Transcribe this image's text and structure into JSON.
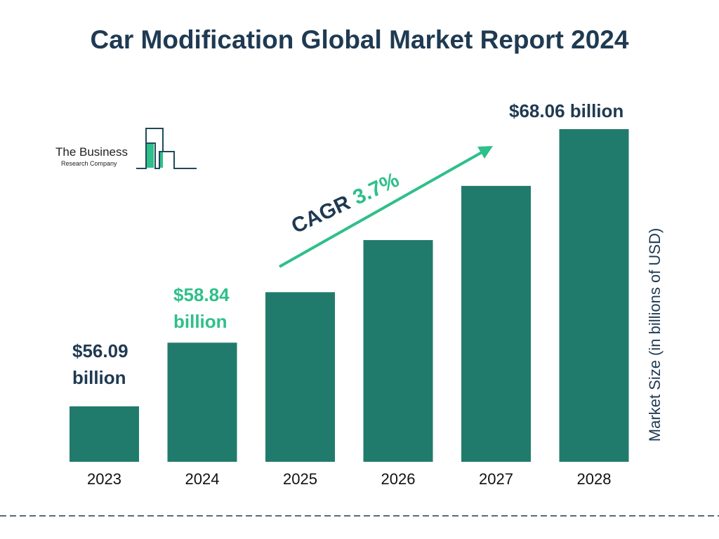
{
  "chart_data": {
    "type": "bar",
    "title": "Car Modification Global Market Report 2024",
    "ylabel": "Market Size (in billions of USD)",
    "xlabel": "",
    "categories": [
      "2023",
      "2024",
      "2025",
      "2026",
      "2027",
      "2028"
    ],
    "values": [
      56.09,
      58.84,
      61.02,
      63.27,
      65.61,
      68.06
    ],
    "data_labels": {
      "2023": [
        "$56.09",
        "billion"
      ],
      "2024": [
        "$58.84",
        "billion"
      ],
      "2028": [
        "$68.06 billion"
      ]
    },
    "annotation": {
      "cagr_label": "CAGR",
      "cagr_value": "3.7%"
    },
    "grid": false,
    "colors": {
      "bar": "#217b6c",
      "highlight": "#2fbf8a",
      "text": "#1f3a52"
    }
  },
  "logo": {
    "line1": "The Business",
    "line2": "Research Company"
  }
}
